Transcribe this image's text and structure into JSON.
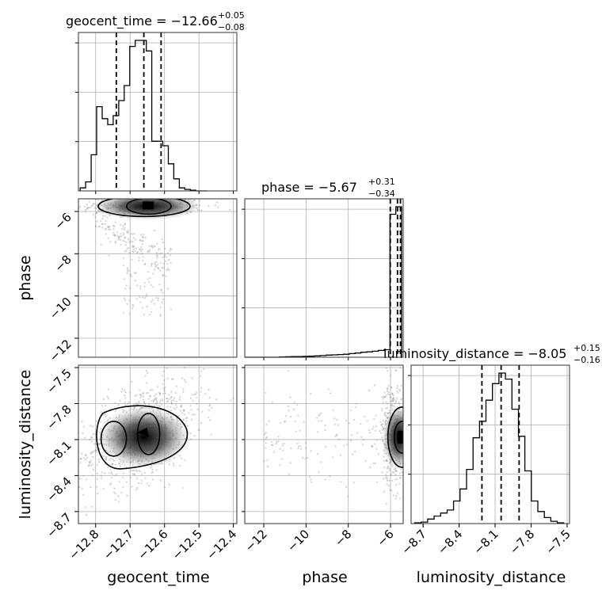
{
  "chart_data": {
    "type": "corner",
    "parameters": [
      {
        "name": "geocent_time",
        "title": {
          "main": "geocent_time = −12.66",
          "sup": "+0.05",
          "sub": "−0.08"
        },
        "range": [
          -12.85,
          -12.39
        ],
        "ticks": [
          -12.8,
          -12.7,
          -12.6,
          -12.5,
          -12.4
        ],
        "tick_labels": [
          "−12.8",
          "−12.7",
          "−12.6",
          "−12.5",
          "−12.4"
        ],
        "quantiles": [
          -12.74,
          -12.66,
          -12.61
        ],
        "histogram": {
          "edges": [
            -12.845,
            -12.829,
            -12.813,
            -12.797,
            -12.781,
            -12.765,
            -12.749,
            -12.733,
            -12.717,
            -12.701,
            -12.685,
            -12.669,
            -12.653,
            -12.637,
            -12.621,
            -12.605,
            -12.589,
            -12.573,
            -12.557,
            -12.541,
            -12.525,
            -12.509,
            -12.493,
            -12.477
          ],
          "counts": [
            0.02,
            0.06,
            0.24,
            0.56,
            0.48,
            0.44,
            0.5,
            0.6,
            0.7,
            0.96,
            1.0,
            1.0,
            0.93,
            0.33,
            0.33,
            0.3,
            0.18,
            0.08,
            0.02,
            0.01,
            0.005,
            0,
            0
          ]
        }
      },
      {
        "name": "phase",
        "title": {
          "main": "phase = −5.67",
          "sup": "+0.31",
          "sub": "−0.34"
        },
        "range": [
          -12.9,
          -5.4
        ],
        "ticks": [
          -12,
          -10,
          -8,
          -6
        ],
        "tick_labels": [
          "−12",
          "−10",
          "−8",
          "−6"
        ],
        "quantiles": [
          -6.01,
          -5.67,
          -5.53
        ],
        "histogram": {
          "edges": [
            -12.9,
            -12.625,
            -12.35,
            -12.075,
            -11.8,
            -11.525,
            -11.25,
            -10.975,
            -10.7,
            -10.425,
            -10.15,
            -9.875,
            -9.6,
            -9.325,
            -9.05,
            -8.775,
            -8.5,
            -8.225,
            -7.95,
            -7.675,
            -7.4,
            -7.125,
            -6.85,
            -6.575,
            -6.3,
            -6.025,
            -5.75,
            -5.475
          ],
          "counts": [
            0,
            0,
            0,
            0,
            0,
            0,
            0.002,
            0.003,
            0.004,
            0.005,
            0.006,
            0.007,
            0.009,
            0.011,
            0.014,
            0.016,
            0.018,
            0.02,
            0.024,
            0.028,
            0.033,
            0.036,
            0.04,
            0.045,
            0.05,
            0.95,
            1.0
          ]
        }
      },
      {
        "name": "luminosity_distance",
        "title": {
          "main": "luminosity_distance = −8.05",
          "sup": "+0.15",
          "sub": "−0.16"
        },
        "range": [
          -8.8,
          -7.48
        ],
        "ticks": [
          -8.7,
          -8.4,
          -8.1,
          -7.8,
          -7.5
        ],
        "tick_labels": [
          "−8.7",
          "−8.4",
          "−8.1",
          "−7.8",
          "−7.5"
        ],
        "quantiles": [
          -8.21,
          -8.05,
          -7.9
        ],
        "histogram": {
          "edges": [
            -8.77,
            -8.716,
            -8.662,
            -8.608,
            -8.554,
            -8.5,
            -8.446,
            -8.392,
            -8.338,
            -8.284,
            -8.23,
            -8.176,
            -8.122,
            -8.068,
            -8.014,
            -7.96,
            -7.906,
            -7.852,
            -7.798,
            -7.744,
            -7.69,
            -7.636,
            -7.582,
            -7.528
          ],
          "counts": [
            0.005,
            0.01,
            0.03,
            0.05,
            0.07,
            0.09,
            0.15,
            0.23,
            0.36,
            0.57,
            0.68,
            0.82,
            0.93,
            1.0,
            0.96,
            0.76,
            0.58,
            0.35,
            0.15,
            0.08,
            0.04,
            0.015,
            0.005
          ]
        }
      }
    ],
    "hist_yticks": 3,
    "contour_levels": 3
  }
}
